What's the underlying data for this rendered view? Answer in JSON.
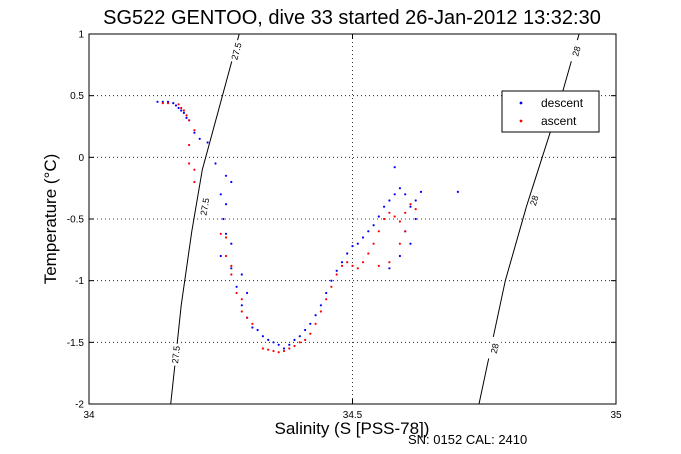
{
  "chart_data": {
    "type": "scatter",
    "title": "SG522 GENTOO, dive 33 started 26-Jan-2012 13:32:30",
    "xlabel": "Salinity (S [PSS-78])",
    "ylabel": "Temperature (°C)",
    "xlim": [
      34,
      35
    ],
    "ylim": [
      -2,
      1
    ],
    "xticks": [
      "34",
      "34.5",
      "35"
    ],
    "yticks": [
      "1",
      "0.5",
      "0",
      "-0.5",
      "-1",
      "-1.5",
      "-2"
    ],
    "grid": true,
    "legend_position": "top-right",
    "series": [
      {
        "name": "descent",
        "color": "#0000ff",
        "points": [
          [
            34.13,
            0.45
          ],
          [
            34.14,
            0.45
          ],
          [
            34.15,
            0.45
          ],
          [
            34.16,
            0.44
          ],
          [
            34.165,
            0.42
          ],
          [
            34.17,
            0.4
          ],
          [
            34.175,
            0.38
          ],
          [
            34.18,
            0.36
          ],
          [
            34.185,
            0.32
          ],
          [
            34.19,
            0.3
          ],
          [
            34.2,
            0.2
          ],
          [
            34.21,
            0.15
          ],
          [
            34.225,
            0.12
          ],
          [
            34.24,
            -0.05
          ],
          [
            34.26,
            -0.15
          ],
          [
            34.27,
            -0.2
          ],
          [
            34.25,
            -0.3
          ],
          [
            34.26,
            -0.38
          ],
          [
            34.255,
            -0.5
          ],
          [
            34.26,
            -0.62
          ],
          [
            34.27,
            -0.7
          ],
          [
            34.25,
            -0.8
          ],
          [
            34.27,
            -0.9
          ],
          [
            34.29,
            -0.95
          ],
          [
            34.28,
            -1.05
          ],
          [
            34.3,
            -1.1
          ],
          [
            34.29,
            -1.2
          ],
          [
            34.3,
            -1.3
          ],
          [
            34.31,
            -1.38
          ],
          [
            34.32,
            -1.4
          ],
          [
            34.33,
            -1.45
          ],
          [
            34.34,
            -1.48
          ],
          [
            34.35,
            -1.5
          ],
          [
            34.36,
            -1.52
          ],
          [
            34.37,
            -1.55
          ],
          [
            34.38,
            -1.52
          ],
          [
            34.39,
            -1.48
          ],
          [
            34.4,
            -1.45
          ],
          [
            34.41,
            -1.4
          ],
          [
            34.42,
            -1.35
          ],
          [
            34.43,
            -1.28
          ],
          [
            34.44,
            -1.2
          ],
          [
            34.45,
            -1.1
          ],
          [
            34.46,
            -1.0
          ],
          [
            34.47,
            -0.92
          ],
          [
            34.48,
            -0.85
          ],
          [
            34.49,
            -0.78
          ],
          [
            34.5,
            -0.72
          ],
          [
            34.51,
            -0.7
          ],
          [
            34.52,
            -0.65
          ],
          [
            34.53,
            -0.6
          ],
          [
            34.54,
            -0.55
          ],
          [
            34.55,
            -0.48
          ],
          [
            34.56,
            -0.4
          ],
          [
            34.57,
            -0.35
          ],
          [
            34.58,
            -0.3
          ],
          [
            34.59,
            -0.25
          ],
          [
            34.6,
            -0.3
          ],
          [
            34.61,
            -0.4
          ],
          [
            34.62,
            -0.35
          ],
          [
            34.63,
            -0.28
          ],
          [
            34.62,
            -0.5
          ],
          [
            34.6,
            -0.6
          ],
          [
            34.59,
            -0.8
          ],
          [
            34.57,
            -0.9
          ],
          [
            34.61,
            -0.7
          ],
          [
            34.7,
            -0.28
          ],
          [
            34.58,
            -0.08
          ]
        ]
      },
      {
        "name": "ascent",
        "color": "#ff0000",
        "points": [
          [
            34.14,
            0.44
          ],
          [
            34.15,
            0.44
          ],
          [
            34.17,
            0.43
          ],
          [
            34.175,
            0.4
          ],
          [
            34.18,
            0.38
          ],
          [
            34.185,
            0.34
          ],
          [
            34.19,
            0.3
          ],
          [
            34.2,
            0.22
          ],
          [
            34.19,
            0.1
          ],
          [
            34.19,
            -0.05
          ],
          [
            34.2,
            -0.1
          ],
          [
            34.2,
            -0.2
          ],
          [
            34.25,
            -0.62
          ],
          [
            34.26,
            -0.65
          ],
          [
            34.26,
            -0.8
          ],
          [
            34.27,
            -0.88
          ],
          [
            34.27,
            -0.95
          ],
          [
            34.28,
            -1.1
          ],
          [
            34.29,
            -1.15
          ],
          [
            34.29,
            -1.25
          ],
          [
            34.3,
            -1.3
          ],
          [
            34.31,
            -1.35
          ],
          [
            34.33,
            -1.55
          ],
          [
            34.34,
            -1.56
          ],
          [
            34.35,
            -1.57
          ],
          [
            34.36,
            -1.58
          ],
          [
            34.37,
            -1.57
          ],
          [
            34.38,
            -1.55
          ],
          [
            34.39,
            -1.53
          ],
          [
            34.4,
            -1.5
          ],
          [
            34.41,
            -1.48
          ],
          [
            34.42,
            -1.43
          ],
          [
            34.43,
            -1.35
          ],
          [
            34.44,
            -1.25
          ],
          [
            34.45,
            -1.15
          ],
          [
            34.46,
            -1.05
          ],
          [
            34.47,
            -0.95
          ],
          [
            34.48,
            -0.88
          ],
          [
            34.49,
            -0.85
          ],
          [
            34.5,
            -0.88
          ],
          [
            34.51,
            -0.9
          ],
          [
            34.52,
            -0.85
          ],
          [
            34.53,
            -0.78
          ],
          [
            34.54,
            -0.7
          ],
          [
            34.55,
            -0.6
          ],
          [
            34.56,
            -0.5
          ],
          [
            34.57,
            -0.45
          ],
          [
            34.58,
            -0.48
          ],
          [
            34.59,
            -0.52
          ],
          [
            34.6,
            -0.45
          ],
          [
            34.61,
            -0.38
          ],
          [
            34.62,
            -0.42
          ],
          [
            34.55,
            -0.88
          ],
          [
            34.57,
            -0.85
          ],
          [
            34.59,
            -0.7
          ],
          [
            34.6,
            -0.6
          ]
        ]
      }
    ],
    "contours": [
      {
        "label": "27.5",
        "line": [
          [
            34.155,
            -2.0
          ],
          [
            34.165,
            -1.6
          ],
          [
            34.175,
            -1.2
          ],
          [
            34.195,
            -0.6
          ],
          [
            34.215,
            -0.1
          ],
          [
            34.25,
            0.45
          ],
          [
            34.285,
            1.0
          ]
        ],
        "labels_at": [
          [
            34.165,
            -1.6
          ],
          [
            34.22,
            -0.4
          ],
          [
            34.28,
            0.86
          ]
        ]
      },
      {
        "label": "28",
        "line": [
          [
            34.74,
            -2.0
          ],
          [
            34.76,
            -1.6
          ],
          [
            34.79,
            -1.0
          ],
          [
            34.83,
            -0.4
          ],
          [
            34.86,
            0.0
          ],
          [
            34.89,
            0.4
          ],
          [
            34.93,
            1.0
          ]
        ],
        "labels_at": [
          [
            34.77,
            -1.55
          ],
          [
            34.845,
            -0.35
          ],
          [
            34.925,
            0.86
          ]
        ]
      }
    ]
  },
  "footer": "SN: 0152  CAL: 2410"
}
